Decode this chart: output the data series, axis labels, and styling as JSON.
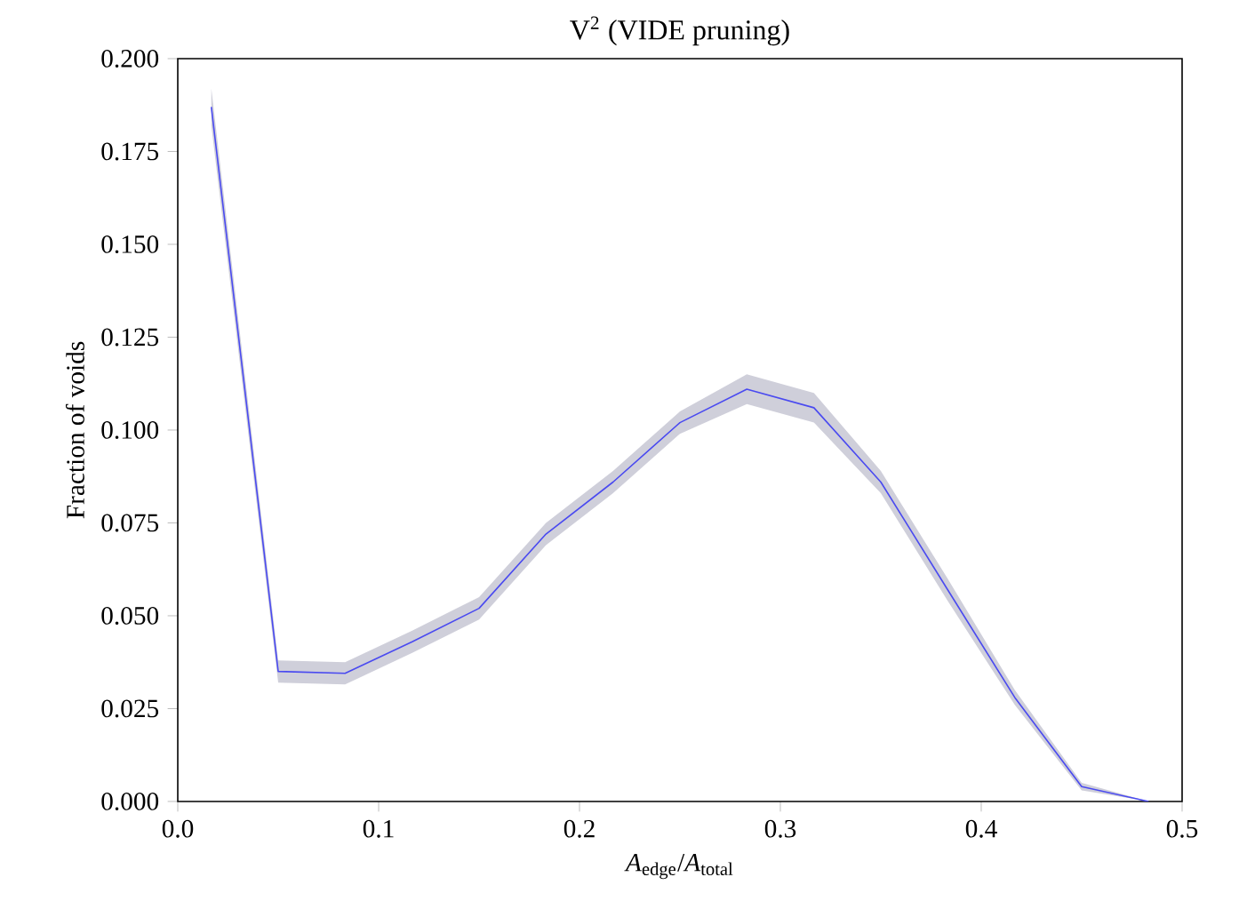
{
  "chart_data": {
    "type": "line",
    "title": "V$^{2}$ (VIDE pruning)",
    "xlabel": "*A*$_{edge}$/*A*$_{total}$",
    "ylabel": "Fraction of voids",
    "x": [
      0.0167,
      0.05,
      0.0833,
      0.1167,
      0.15,
      0.1833,
      0.2167,
      0.25,
      0.2833,
      0.3167,
      0.35,
      0.3833,
      0.4167,
      0.45,
      0.4833
    ],
    "series": [
      {
        "color": "#4a4af0",
        "values": [
          0.187,
          0.035,
          0.0345,
          0.043,
          0.052,
          0.072,
          0.086,
          0.102,
          0.111,
          0.106,
          0.086,
          0.057,
          0.028,
          0.004,
          0.0
        ],
        "lower": [
          0.182,
          0.032,
          0.0315,
          0.04,
          0.049,
          0.069,
          0.083,
          0.099,
          0.107,
          0.102,
          0.083,
          0.054,
          0.026,
          0.003,
          0.0
        ],
        "upper": [
          0.192,
          0.038,
          0.0375,
          0.046,
          0.055,
          0.075,
          0.089,
          0.105,
          0.115,
          0.11,
          0.089,
          0.06,
          0.03,
          0.005,
          0.0
        ]
      }
    ],
    "xlim": [
      0,
      0.5
    ],
    "ylim": [
      0,
      0.2
    ],
    "xticks": [
      {
        "value": 0,
        "label": "0.0"
      },
      0.1,
      0.2,
      0.3,
      0.4,
      0.5
    ],
    "yticks": [
      {
        "value": 0,
        "label": "0.000"
      },
      {
        "value": 0.025,
        "label": "0.025"
      },
      {
        "value": 0.05,
        "label": "0.050"
      },
      {
        "value": 0.075,
        "label": "0.075"
      },
      {
        "value": 0.1,
        "label": "0.100"
      },
      {
        "value": 0.125,
        "label": "0.125"
      },
      {
        "value": 0.15,
        "label": "0.150"
      },
      {
        "value": 0.175,
        "label": "0.175"
      },
      {
        "value": 0.2,
        "label": "0.200"
      }
    ]
  }
}
